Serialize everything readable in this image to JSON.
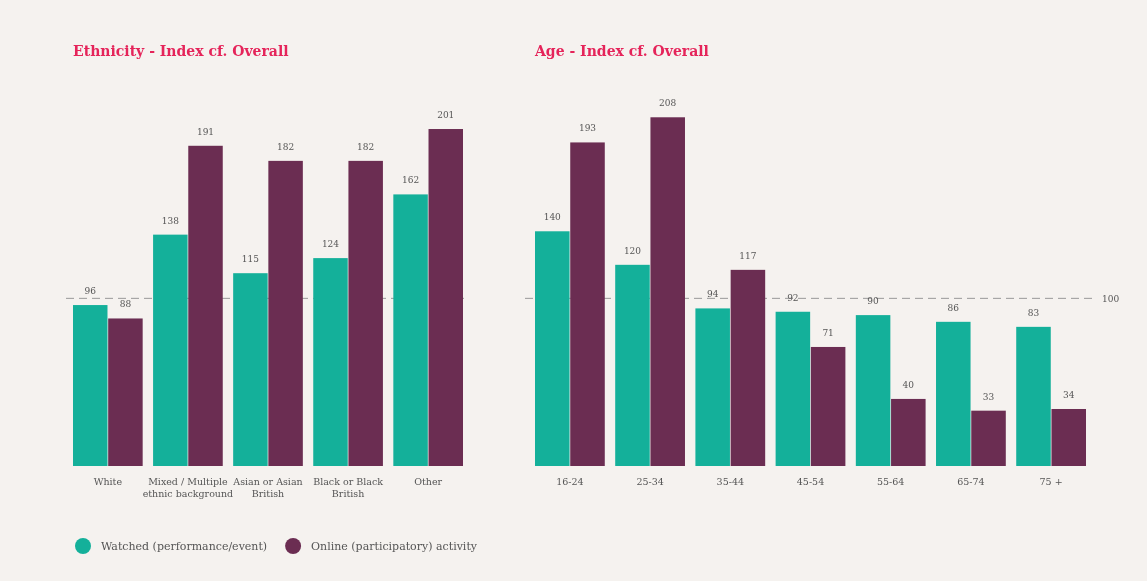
{
  "chart_data": [
    {
      "type": "bar",
      "title": "Ethnicity - Index cf. Overall",
      "categories": [
        "White",
        "Mixed / Multiple ethnic background",
        "Asian or Asian British",
        "Black or Black British",
        "Other"
      ],
      "series": [
        {
          "name": "Watched (performance/event)",
          "color": "#14b09a",
          "values": [
            96,
            138,
            115,
            124,
            162
          ]
        },
        {
          "name": "Online (participatory) activity",
          "color": "#6b2d52",
          "values": [
            88,
            191,
            182,
            182,
            201
          ]
        }
      ],
      "data_labels": true,
      "legend": "bottom left",
      "ref_lines": [
        {
          "axis": "y",
          "value": 100,
          "color": "#999999",
          "line_style": "dashed"
        }
      ]
    },
    {
      "type": "bar",
      "title": "Age - Index cf. Overall",
      "categories": [
        "16-24",
        "25-34",
        "35-44",
        "45-54",
        "55-64",
        "65-74",
        "75 +"
      ],
      "series": [
        {
          "color": "#14b09a",
          "values": [
            140,
            120,
            94,
            92,
            90,
            86,
            83
          ]
        },
        {
          "color": "#6b2d52",
          "values": [
            193,
            208,
            117,
            71,
            40,
            33,
            34
          ]
        }
      ],
      "data_labels": true,
      "ref_lines": [
        {
          "axis": "y",
          "value": 100,
          "label": "100",
          "color": "#999999",
          "line_style": "dashed"
        }
      ]
    }
  ]
}
